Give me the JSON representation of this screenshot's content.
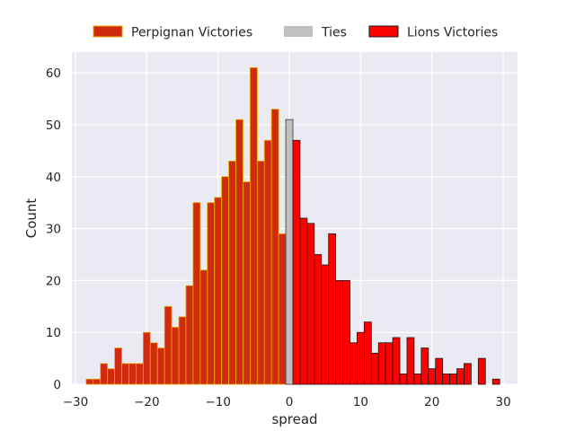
{
  "chart_data": {
    "type": "bar",
    "title": "",
    "xlabel": "spread",
    "ylabel": "Count",
    "xlim": [
      -30.5,
      32
    ],
    "ylim": [
      0,
      64
    ],
    "xticks": [
      -30,
      -20,
      -10,
      0,
      10,
      20,
      30
    ],
    "xtick_labels": [
      "−30",
      "−20",
      "−10",
      "0",
      "10",
      "20",
      "30"
    ],
    "yticks": [
      0,
      10,
      20,
      30,
      40,
      50,
      60
    ],
    "ytick_labels": [
      "0",
      "10",
      "20",
      "30",
      "40",
      "50",
      "60"
    ],
    "grid": true,
    "legend_position": "top-center",
    "bin_width": 1,
    "series": [
      {
        "name": "Perpignan Victories",
        "color": "#d02b0f",
        "edge_color": "#e8a800",
        "x": [
          -28,
          -27,
          -26,
          -25,
          -24,
          -23,
          -22,
          -21,
          -20,
          -19,
          -18,
          -17,
          -16,
          -15,
          -14,
          -13,
          -12,
          -11,
          -10,
          -9,
          -8,
          -7,
          -6,
          -5,
          -4,
          -3,
          -2,
          -1
        ],
        "values": [
          1,
          1,
          4,
          3,
          7,
          4,
          4,
          4,
          10,
          8,
          7,
          15,
          11,
          13,
          19,
          35,
          22,
          35,
          36,
          40,
          43,
          51,
          39,
          61,
          43,
          47,
          53,
          29
        ]
      },
      {
        "name": "Ties",
        "color": "#c0c0c0",
        "edge_color": "#333333",
        "x": [
          0
        ],
        "values": [
          51
        ]
      },
      {
        "name": "Lions Victories",
        "color": "#ff0000",
        "edge_color": "#1a1a1a",
        "x": [
          1,
          2,
          3,
          4,
          5,
          6,
          7,
          8,
          9,
          10,
          11,
          12,
          13,
          14,
          15,
          16,
          17,
          18,
          19,
          20,
          21,
          22,
          23,
          24,
          25,
          26,
          27,
          28,
          29
        ],
        "values": [
          47,
          32,
          31,
          25,
          23,
          29,
          20,
          20,
          8,
          10,
          12,
          6,
          8,
          8,
          9,
          2,
          9,
          2,
          7,
          3,
          5,
          2,
          2,
          3,
          4,
          0,
          5,
          0,
          1
        ]
      }
    ]
  }
}
